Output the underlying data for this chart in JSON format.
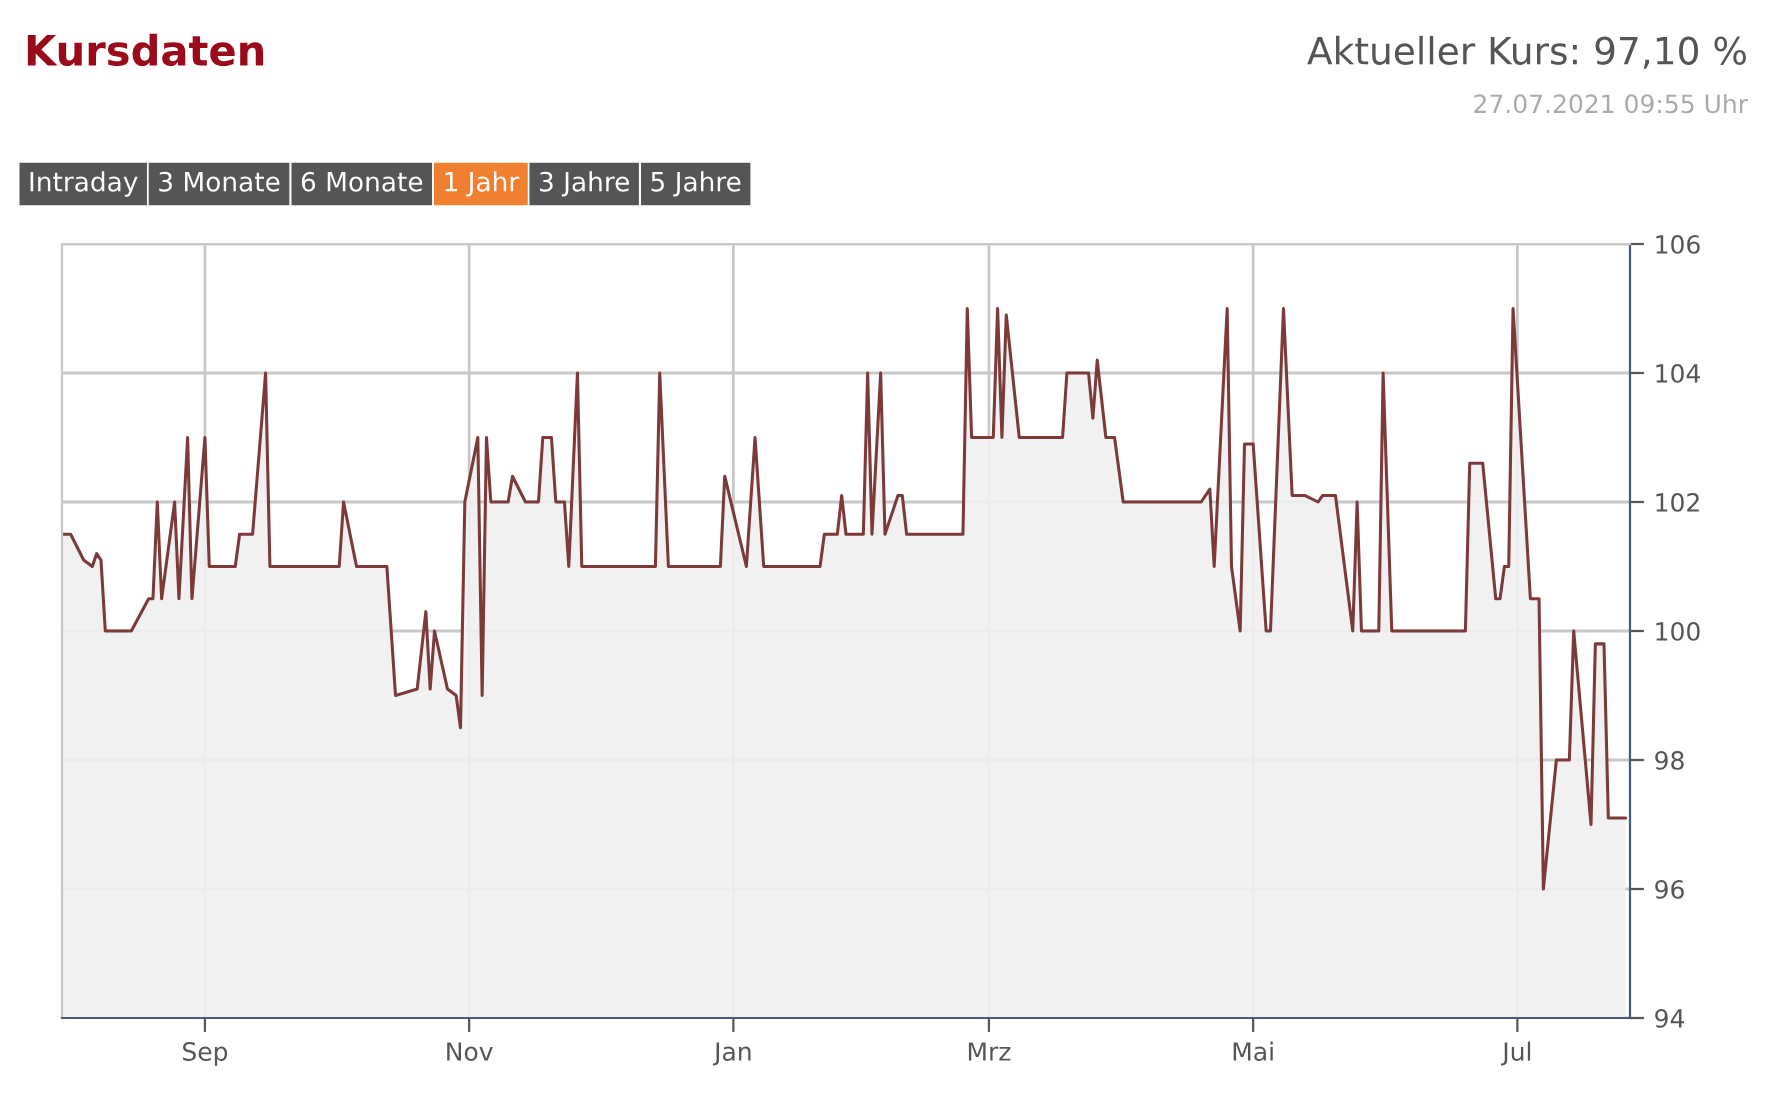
{
  "chart_data": {
    "type": "area",
    "title": "Kursdaten",
    "annotations": [
      "Aktueller Kurs: 97,10 %",
      "27.07.2021 09:55 Uhr",
      "Intraday",
      "3 Monate",
      "6 Monate",
      "1 Jahr",
      "3 Jahre",
      "5 Jahre"
    ],
    "x": [
      "2020-07-30",
      "2020-08-01",
      "2020-08-04",
      "2020-08-06",
      "2020-08-07",
      "2020-08-08",
      "2020-08-09",
      "2020-08-15",
      "2020-08-19",
      "2020-08-20",
      "2020-08-21",
      "2020-08-22",
      "2020-08-25",
      "2020-08-26",
      "2020-08-28",
      "2020-08-29",
      "2020-09-01",
      "2020-09-02",
      "2020-09-08",
      "2020-09-09",
      "2020-09-12",
      "2020-09-15",
      "2020-09-16",
      "2020-10-02",
      "2020-10-03",
      "2020-10-06",
      "2020-10-13",
      "2020-10-15",
      "2020-10-20",
      "2020-10-22",
      "2020-10-23",
      "2020-10-24",
      "2020-10-27",
      "2020-10-29",
      "2020-10-30",
      "2020-10-31",
      "2020-11-03",
      "2020-11-04",
      "2020-11-05",
      "2020-11-06",
      "2020-11-10",
      "2020-11-11",
      "2020-11-14",
      "2020-11-17",
      "2020-11-18",
      "2020-11-20",
      "2020-11-21",
      "2020-11-23",
      "2020-11-24",
      "2020-11-26",
      "2020-11-27",
      "2020-12-14",
      "2020-12-15",
      "2020-12-17",
      "2020-12-18",
      "2020-12-29",
      "2020-12-30",
      "2021-01-04",
      "2021-01-06",
      "2021-01-08",
      "2021-01-21",
      "2021-01-22",
      "2021-01-25",
      "2021-01-26",
      "2021-01-27",
      "2021-01-31",
      "2021-02-01",
      "2021-02-02",
      "2021-02-04",
      "2021-02-05",
      "2021-02-08",
      "2021-02-09",
      "2021-02-10",
      "2021-02-23",
      "2021-02-24",
      "2021-02-25",
      "2021-03-02",
      "2021-03-03",
      "2021-03-04",
      "2021-03-05",
      "2021-03-08",
      "2021-03-18",
      "2021-03-19",
      "2021-03-24",
      "2021-03-25",
      "2021-03-26",
      "2021-03-28",
      "2021-03-30",
      "2021-04-01",
      "2021-04-19",
      "2021-04-21",
      "2021-04-22",
      "2021-04-25",
      "2021-04-26",
      "2021-04-28",
      "2021-04-29",
      "2021-05-01",
      "2021-05-04",
      "2021-05-05",
      "2021-05-08",
      "2021-05-10",
      "2021-05-13",
      "2021-05-16",
      "2021-05-17",
      "2021-05-20",
      "2021-05-24",
      "2021-05-25",
      "2021-05-26",
      "2021-05-30",
      "2021-05-31",
      "2021-06-02",
      "2021-06-19",
      "2021-06-20",
      "2021-06-23",
      "2021-06-26",
      "2021-06-27",
      "2021-06-28",
      "2021-06-29",
      "2021-06-30",
      "2021-07-04",
      "2021-07-06",
      "2021-07-07",
      "2021-07-10",
      "2021-07-13",
      "2021-07-14",
      "2021-07-18",
      "2021-07-19",
      "2021-07-21",
      "2021-07-22",
      "2021-07-24",
      "2021-07-26"
    ],
    "series": [
      {
        "color": "#7d3a3a",
        "values": [
          101.5,
          101.5,
          101.1,
          101.0,
          101.2,
          101.1,
          100.0,
          100.0,
          100.5,
          100.5,
          102.0,
          100.5,
          102.0,
          100.5,
          103.0,
          100.5,
          103.0,
          101.0,
          101.0,
          101.5,
          101.5,
          104.0,
          101.0,
          101.0,
          102.0,
          101.0,
          101.0,
          99.0,
          99.1,
          100.3,
          99.1,
          100.0,
          99.1,
          99.0,
          98.5,
          102.0,
          103.0,
          99.0,
          103.0,
          102.0,
          102.0,
          102.4,
          102.0,
          102.0,
          103.0,
          103.0,
          102.0,
          102.0,
          101.0,
          104.0,
          101.0,
          101.0,
          104.0,
          101.0,
          101.0,
          101.0,
          102.4,
          101.0,
          103.0,
          101.0,
          101.0,
          101.5,
          101.5,
          102.1,
          101.5,
          101.5,
          104.0,
          101.5,
          104.0,
          101.5,
          102.1,
          102.1,
          101.5,
          101.5,
          105.0,
          103.0,
          103.0,
          105.0,
          103.0,
          104.9,
          103.0,
          103.0,
          104.0,
          104.0,
          103.3,
          104.2,
          103.0,
          103.0,
          102.0,
          102.0,
          102.2,
          101.0,
          105.0,
          101.0,
          100.0,
          102.9,
          102.9,
          100.0,
          100.0,
          105.0,
          102.1,
          102.1,
          102.0,
          102.1,
          102.1,
          100.0,
          102.0,
          100.0,
          100.0,
          104.0,
          100.0,
          100.0,
          102.6,
          102.6,
          100.5,
          100.5,
          101.0,
          101.0,
          105.0,
          100.5,
          100.5,
          96.0,
          98.0,
          98.0,
          100.0,
          97.0,
          99.8,
          99.8,
          97.1,
          97.1,
          97.1
        ]
      }
    ],
    "xlim": [
      "2020-07-30",
      "2021-07-27"
    ],
    "xticks": [
      {
        "value": "2020-09-01",
        "label": "Sep"
      },
      {
        "value": "2020-11-01",
        "label": "Nov"
      },
      {
        "value": "2021-01-01",
        "label": "Jan"
      },
      {
        "value": "2021-03-01",
        "label": "Mrz"
      },
      {
        "value": "2021-05-01",
        "label": "Mai"
      },
      {
        "value": "2021-07-01",
        "label": "Jul"
      }
    ],
    "ylim": [
      94,
      106
    ],
    "yticks": [
      94,
      96,
      98,
      100,
      102,
      104,
      106
    ],
    "grid": true,
    "legend": false
  }
}
